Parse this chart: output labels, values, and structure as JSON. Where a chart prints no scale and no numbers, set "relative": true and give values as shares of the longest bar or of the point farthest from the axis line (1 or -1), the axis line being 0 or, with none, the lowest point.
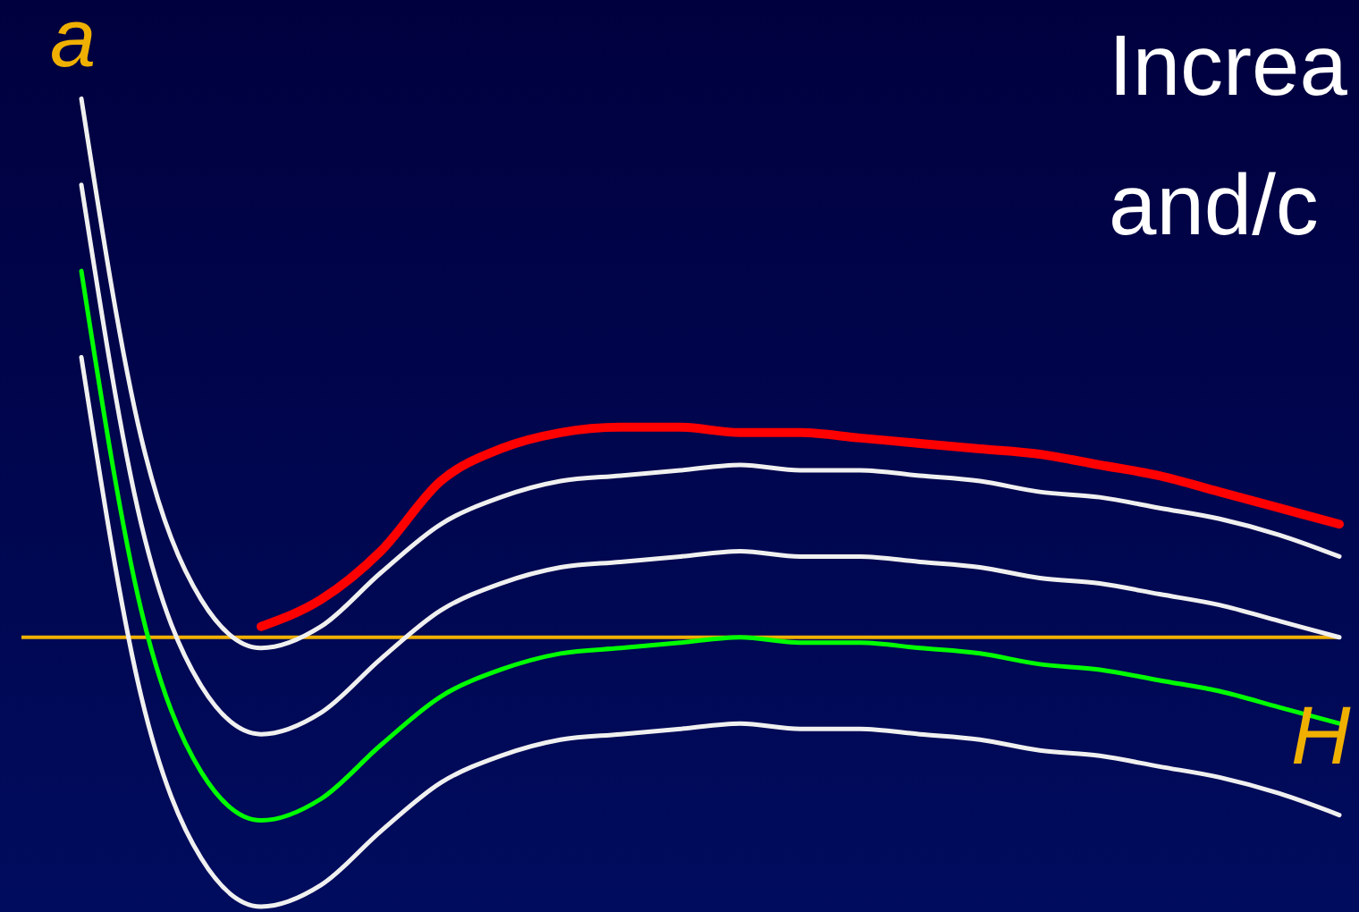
{
  "chart_data": {
    "type": "line",
    "relative": true,
    "xlabel": "H",
    "ylabel": "a",
    "annotations": [
      "Increa",
      "and/c"
    ],
    "marker": "none",
    "ref_lines": [
      {
        "axis": "y",
        "value": 0,
        "color": "#f0b000"
      }
    ],
    "categories": [
      null,
      null,
      null,
      null,
      null,
      null,
      null,
      null,
      null,
      null,
      null,
      null,
      null,
      null,
      null,
      null,
      null,
      null,
      null,
      null,
      null,
      null,
      null
    ],
    "series": [
      {
        "color": "#f0f0f0",
        "values": [
          null,
          1.0,
          0.37,
          0.07,
          -0.02,
          0.02,
          0.12,
          0.21,
          0.26,
          0.29,
          0.3,
          0.31,
          0.32,
          0.31,
          0.31,
          0.3,
          0.29,
          0.27,
          0.26,
          0.24,
          0.22,
          0.19,
          0.15
        ]
      },
      {
        "color": "#f0f0f0",
        "values": [
          null,
          0.84,
          0.21,
          -0.09,
          -0.18,
          -0.14,
          -0.04,
          0.05,
          0.1,
          0.13,
          0.14,
          0.15,
          0.16,
          0.15,
          0.15,
          0.14,
          0.13,
          0.11,
          0.1,
          0.08,
          0.06,
          0.03,
          0.0
        ]
      },
      {
        "color": "#00ff00",
        "values": [
          null,
          0.68,
          0.05,
          -0.25,
          -0.34,
          -0.3,
          -0.2,
          -0.11,
          -0.06,
          -0.03,
          -0.02,
          -0.01,
          0.0,
          -0.01,
          -0.01,
          -0.02,
          -0.03,
          -0.05,
          -0.06,
          -0.08,
          -0.1,
          -0.13,
          -0.16
        ]
      },
      {
        "color": "#f0f0f0",
        "values": [
          null,
          0.52,
          -0.11,
          -0.41,
          -0.5,
          -0.46,
          -0.36,
          -0.27,
          -0.22,
          -0.19,
          -0.18,
          -0.17,
          -0.16,
          -0.17,
          -0.17,
          -0.18,
          -0.19,
          -0.21,
          -0.22,
          -0.24,
          -0.26,
          -0.29,
          -0.33
        ]
      },
      {
        "color": "#ff0000",
        "values": [
          null,
          null,
          null,
          null,
          0.02,
          0.07,
          0.16,
          0.29,
          0.35,
          0.38,
          0.39,
          0.39,
          0.38,
          0.38,
          0.37,
          0.36,
          0.35,
          0.34,
          0.32,
          0.3,
          0.27,
          0.24,
          0.21
        ]
      }
    ]
  }
}
